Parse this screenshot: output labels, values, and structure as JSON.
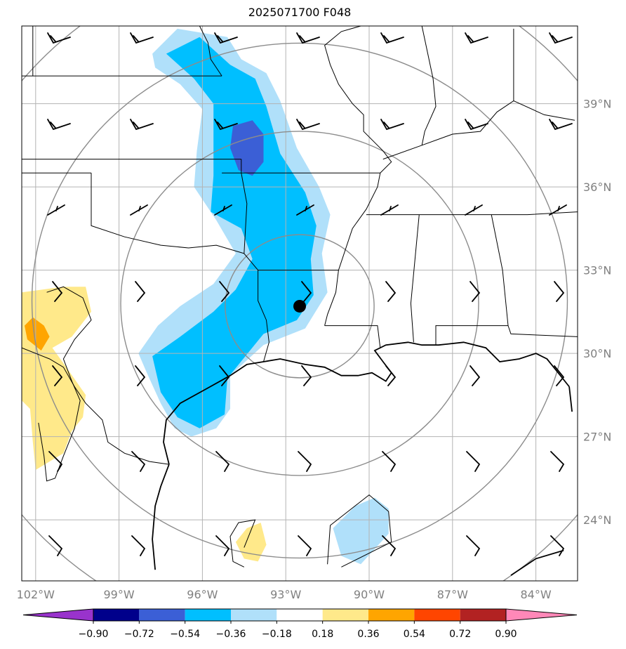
{
  "chart_data": {
    "type": "contour-map",
    "title": "2025071700 F048",
    "projection": "Lambert Conformal map with state boundaries, coastlines and range rings",
    "lon_range": [
      -102.5,
      -82.5
    ],
    "lat_range": [
      21.8,
      41.8
    ],
    "x_tick_labels": [
      {
        "lon": -102,
        "label": "102°W"
      },
      {
        "lon": -99,
        "label": "99°W"
      },
      {
        "lon": -96,
        "label": "96°W"
      },
      {
        "lon": -93,
        "label": "93°W"
      },
      {
        "lon": -90,
        "label": "90°W"
      },
      {
        "lon": -87,
        "label": "87°W"
      },
      {
        "lon": -84,
        "label": "84°W"
      }
    ],
    "y_tick_labels": [
      {
        "lat": 39,
        "label": "39°N"
      },
      {
        "lat": 36,
        "label": "36°N"
      },
      {
        "lat": 33,
        "label": "33°N"
      },
      {
        "lat": 30,
        "label": "30°N"
      },
      {
        "lat": 27,
        "label": "27°N"
      },
      {
        "lat": 24,
        "label": "24°N"
      }
    ],
    "grid": true,
    "center_marker": {
      "lon": -92.5,
      "lat": 31.7
    },
    "range_rings_count": 4,
    "colorbar": {
      "orientation": "horizontal",
      "extend": "both",
      "levels": [
        -0.9,
        -0.72,
        -0.54,
        -0.36,
        -0.18,
        0.18,
        0.36,
        0.54,
        0.72,
        0.9
      ],
      "tick_labels": [
        "−0.90",
        "−0.72",
        "−0.54",
        "−0.36",
        "−0.18",
        "0.18",
        "0.36",
        "0.54",
        "0.72",
        "0.90"
      ],
      "colors": [
        "#9933cc",
        "#00008b",
        "#3b5fd6",
        "#00bfff",
        "#b0e0fa",
        "#ffffff",
        "#ffe98a",
        "#ffa500",
        "#ff4500",
        "#b22222",
        "#ff88b8"
      ]
    },
    "anomaly_regions": [
      {
        "level": -0.18,
        "color": "#b0e0fa",
        "lonlat": [
          [
            -97.8,
            40.8
          ],
          [
            -96.9,
            41.7
          ],
          [
            -95.1,
            41.4
          ],
          [
            -94.6,
            40.6
          ],
          [
            -93.7,
            40.1
          ],
          [
            -93.2,
            39.1
          ],
          [
            -92.6,
            37.4
          ],
          [
            -91.8,
            36.0
          ],
          [
            -91.4,
            35.0
          ],
          [
            -91.7,
            33.6
          ],
          [
            -91.5,
            32.2
          ],
          [
            -92.3,
            30.9
          ],
          [
            -93.8,
            30.3
          ],
          [
            -95.0,
            29.2
          ],
          [
            -95.0,
            28.0
          ],
          [
            -95.5,
            27.3
          ],
          [
            -96.4,
            27.0
          ],
          [
            -97.0,
            27.3
          ],
          [
            -97.5,
            28.2
          ],
          [
            -98.0,
            29.3
          ],
          [
            -98.3,
            30.0
          ],
          [
            -97.6,
            31.0
          ],
          [
            -96.8,
            31.7
          ],
          [
            -95.6,
            32.5
          ],
          [
            -94.8,
            33.6
          ],
          [
            -95.5,
            34.8
          ],
          [
            -96.3,
            36.0
          ],
          [
            -96.2,
            37.3
          ],
          [
            -96.0,
            38.8
          ],
          [
            -96.8,
            39.7
          ],
          [
            -97.7,
            40.3
          ]
        ]
      },
      {
        "level": -0.36,
        "color": "#00bfff",
        "lonlat": [
          [
            -97.3,
            40.8
          ],
          [
            -96.1,
            41.4
          ],
          [
            -95.0,
            40.4
          ],
          [
            -94.1,
            39.9
          ],
          [
            -93.7,
            38.9
          ],
          [
            -93.2,
            37.2
          ],
          [
            -92.3,
            35.8
          ],
          [
            -91.9,
            34.6
          ],
          [
            -92.1,
            33.4
          ],
          [
            -92.0,
            32.1
          ],
          [
            -92.6,
            31.2
          ],
          [
            -93.8,
            30.7
          ],
          [
            -95.1,
            29.1
          ],
          [
            -95.2,
            27.8
          ],
          [
            -96.1,
            27.3
          ],
          [
            -96.9,
            27.7
          ],
          [
            -97.5,
            28.6
          ],
          [
            -97.8,
            29.9
          ],
          [
            -96.8,
            30.6
          ],
          [
            -95.6,
            31.5
          ],
          [
            -94.8,
            32.3
          ],
          [
            -94.2,
            33.4
          ],
          [
            -94.6,
            34.5
          ],
          [
            -95.7,
            35.1
          ],
          [
            -95.6,
            36.4
          ],
          [
            -95.6,
            37.7
          ],
          [
            -95.6,
            39.0
          ],
          [
            -96.3,
            39.9
          ]
        ]
      },
      {
        "level": -0.54,
        "color": "#3b5fd6",
        "lonlat": [
          [
            -94.9,
            38.2
          ],
          [
            -94.2,
            38.4
          ],
          [
            -93.8,
            37.9
          ],
          [
            -93.8,
            36.9
          ],
          [
            -94.2,
            36.4
          ],
          [
            -94.7,
            36.6
          ],
          [
            -95.0,
            37.4
          ]
        ]
      },
      {
        "level": 0.18,
        "color": "#ffe98a",
        "lonlat": [
          [
            -102.5,
            32.2
          ],
          [
            -101.0,
            32.4
          ],
          [
            -100.2,
            32.4
          ],
          [
            -100.0,
            31.5
          ],
          [
            -100.7,
            30.6
          ],
          [
            -101.4,
            30.2
          ],
          [
            -100.9,
            29.5
          ],
          [
            -100.2,
            28.5
          ],
          [
            -100.3,
            27.7
          ],
          [
            -100.7,
            27.2
          ],
          [
            -101.0,
            26.4
          ],
          [
            -101.5,
            26.1
          ],
          [
            -102.0,
            25.8
          ],
          [
            -102.1,
            26.8
          ],
          [
            -102.2,
            28.0
          ],
          [
            -102.5,
            28.3
          ]
        ]
      },
      {
        "level": 0.36,
        "color": "#ffa500",
        "lonlat": [
          [
            -102.1,
            31.3
          ],
          [
            -101.7,
            31.0
          ],
          [
            -101.5,
            30.6
          ],
          [
            -101.8,
            30.1
          ],
          [
            -102.3,
            30.5
          ],
          [
            -102.4,
            31.0
          ]
        ]
      },
      {
        "level": 0.18,
        "color": "#ffe98a",
        "lonlat": [
          [
            -94.4,
            23.7
          ],
          [
            -93.9,
            23.9
          ],
          [
            -93.7,
            23.1
          ],
          [
            -94.0,
            22.5
          ],
          [
            -94.5,
            22.6
          ],
          [
            -94.8,
            23.2
          ]
        ]
      },
      {
        "level": -0.18,
        "color": "#b0e0fa",
        "lonlat": [
          [
            -89.8,
            24.8
          ],
          [
            -89.3,
            24.4
          ],
          [
            -89.3,
            23.5
          ],
          [
            -90.3,
            22.4
          ],
          [
            -91.0,
            22.7
          ],
          [
            -91.3,
            23.7
          ],
          [
            -90.5,
            24.5
          ]
        ]
      }
    ]
  }
}
